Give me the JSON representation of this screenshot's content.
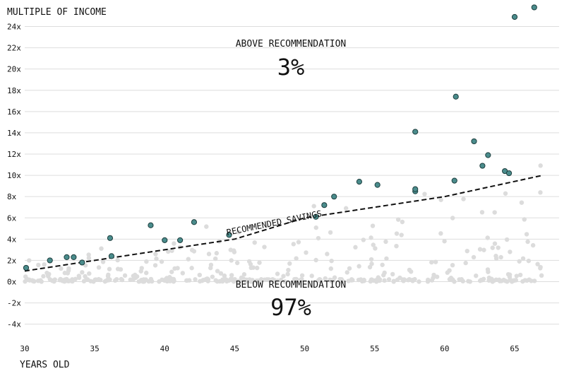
{
  "chart_data": {
    "type": "scatter",
    "title": "",
    "ylabel": "MULTIPLE OF INCOME",
    "xlabel": "YEARS OLD",
    "xlim": [
      30,
      68
    ],
    "ylim": [
      -5,
      25
    ],
    "grid": "horizontal",
    "y_ticks": [
      {
        "v": 24,
        "label": "24x"
      },
      {
        "v": 22,
        "label": "22x"
      },
      {
        "v": 20,
        "label": "20x"
      },
      {
        "v": 18,
        "label": "18x"
      },
      {
        "v": 16,
        "label": "16x"
      },
      {
        "v": 14,
        "label": "14x"
      },
      {
        "v": 12,
        "label": "12x"
      },
      {
        "v": 10,
        "label": "10x"
      },
      {
        "v": 8,
        "label": "8x"
      },
      {
        "v": 6,
        "label": "6x"
      },
      {
        "v": 4,
        "label": "4x"
      },
      {
        "v": 2,
        "label": "2x"
      },
      {
        "v": 0,
        "label": "0x"
      },
      {
        "v": -2,
        "label": "-2x"
      },
      {
        "v": -4,
        "label": "-4x"
      }
    ],
    "x_ticks": [
      {
        "v": 30,
        "label": "30"
      },
      {
        "v": 35,
        "label": "35"
      },
      {
        "v": 40,
        "label": "40"
      },
      {
        "v": 45,
        "label": "45"
      },
      {
        "v": 50,
        "label": "50"
      },
      {
        "v": 55,
        "label": "55"
      },
      {
        "v": 60,
        "label": "60"
      },
      {
        "v": 65,
        "label": "65"
      }
    ],
    "recommended_line": {
      "label": "RECOMMENDED SAVINGS",
      "points": [
        [
          30,
          1
        ],
        [
          35,
          2
        ],
        [
          40,
          3
        ],
        [
          45,
          4
        ],
        [
          50,
          6
        ],
        [
          55,
          7
        ],
        [
          60,
          8
        ],
        [
          67,
          10
        ]
      ]
    },
    "above_points": [
      [
        30.1,
        1.3
      ],
      [
        31.8,
        2.0
      ],
      [
        33.0,
        2.3
      ],
      [
        33.5,
        2.3
      ],
      [
        34.1,
        1.8
      ],
      [
        36.1,
        4.1
      ],
      [
        36.2,
        2.4
      ],
      [
        39.0,
        5.3
      ],
      [
        40.0,
        3.9
      ],
      [
        41.1,
        3.9
      ],
      [
        42.1,
        5.6
      ],
      [
        44.6,
        4.4
      ],
      [
        50.8,
        6.1
      ],
      [
        51.4,
        7.2
      ],
      [
        52.1,
        8.0
      ],
      [
        53.9,
        9.4
      ],
      [
        55.2,
        9.1
      ],
      [
        57.9,
        14.1
      ],
      [
        57.9,
        8.5
      ],
      [
        57.9,
        8.7
      ],
      [
        60.7,
        9.5
      ],
      [
        60.8,
        17.4
      ],
      [
        62.1,
        13.2
      ],
      [
        62.7,
        10.9
      ],
      [
        63.1,
        11.9
      ],
      [
        64.3,
        10.4
      ],
      [
        64.6,
        10.2
      ],
      [
        65.0,
        24.9
      ],
      [
        66.4,
        25.8
      ]
    ],
    "above_label": "ABOVE RECOMMENDATION",
    "above_pct": "3%",
    "below_label": "BELOW RECOMMENDATION",
    "below_pct": "97%",
    "colors": {
      "above_fill": "#4a8c8c",
      "above_stroke": "#1e3e3e",
      "below_fill": "#dcdcdc",
      "grid": "#dddddd",
      "line": "#111111"
    }
  }
}
